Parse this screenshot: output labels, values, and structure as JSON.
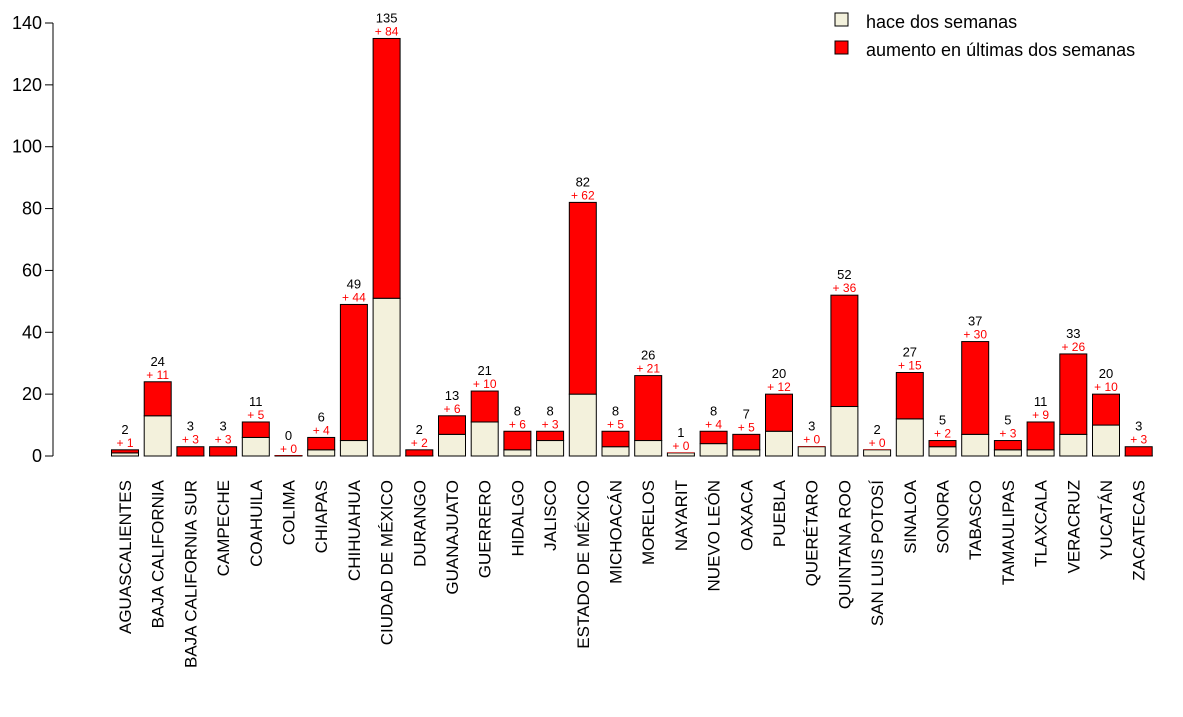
{
  "colors": {
    "base": "#f3f1dc",
    "increase": "#ff0000",
    "increase_text": "#ff0000",
    "axis": "#000000"
  },
  "legend": {
    "position": "top-right",
    "items": [
      {
        "label": "hace dos semanas",
        "color": "#f3f1dc"
      },
      {
        "label": "aumento en últimas dos semanas",
        "color": "#ff0000"
      }
    ]
  },
  "chart_data": {
    "type": "bar",
    "stacked": true,
    "categories": [
      "AGUASCALIENTES",
      "BAJA CALIFORNIA",
      "BAJA CALIFORNIA SUR",
      "CAMPECHE",
      "COAHUILA",
      "COLIMA",
      "CHIAPAS",
      "CHIHUAHUA",
      "CIUDAD DE MÉXICO",
      "DURANGO",
      "GUANAJUATO",
      "GUERRERO",
      "HIDALGO",
      "JALISCO",
      "ESTADO DE MÉXICO",
      "MICHOACÁN",
      "MORELOS",
      "NAYARIT",
      "NUEVO LEÓN",
      "OAXACA",
      "PUEBLA",
      "QUERÉTARO",
      "QUINTANA ROO",
      "SAN LUIS POTOSÍ",
      "SINALOA",
      "SONORA",
      "TABASCO",
      "TAMAULIPAS",
      "TLAXCALA",
      "VERACRUZ",
      "YUCATÁN",
      "ZACATECAS"
    ],
    "series": [
      {
        "name": "hace dos semanas",
        "values": [
          1,
          13,
          0,
          0,
          6,
          0,
          2,
          5,
          51,
          0,
          7,
          11,
          2,
          5,
          20,
          3,
          5,
          1,
          4,
          2,
          8,
          3,
          16,
          2,
          12,
          3,
          7,
          2,
          2,
          7,
          10,
          0
        ]
      },
      {
        "name": "aumento en últimas dos semanas",
        "values": [
          1,
          11,
          3,
          3,
          5,
          0,
          4,
          44,
          84,
          2,
          6,
          10,
          6,
          3,
          62,
          5,
          21,
          0,
          4,
          5,
          12,
          0,
          36,
          0,
          15,
          2,
          30,
          3,
          9,
          26,
          10,
          3
        ]
      }
    ],
    "totals": [
      2,
      24,
      3,
      3,
      11,
      0,
      6,
      49,
      135,
      2,
      13,
      21,
      8,
      8,
      82,
      8,
      26,
      1,
      8,
      7,
      20,
      3,
      52,
      2,
      27,
      5,
      37,
      5,
      11,
      33,
      20,
      3
    ],
    "total_labels": [
      "2",
      "24",
      "3",
      "3",
      "11",
      "0",
      "6",
      "49",
      "135",
      "2",
      "13",
      "21",
      "8",
      "8",
      "82",
      "8",
      "26",
      "1",
      "8",
      "7",
      "20",
      "3",
      "52",
      "2",
      "27",
      "5",
      "37",
      "5",
      "11",
      "33",
      "20",
      "3"
    ],
    "increase_labels": [
      "+ 1",
      "+ 11",
      "+ 3",
      "+ 3",
      "+ 5",
      "+ 0",
      "+ 4",
      "+ 44",
      "+ 84",
      "+ 2",
      "+ 6",
      "+ 10",
      "+ 6",
      "+ 3",
      "+ 62",
      "+ 5",
      "+ 21",
      "+ 0",
      "+ 4",
      "+ 5",
      "+ 12",
      "+ 0",
      "+ 36",
      "+ 0",
      "+ 15",
      "+ 2",
      "+ 30",
      "+ 3",
      "+ 9",
      "+ 26",
      "+ 10",
      "+ 3"
    ],
    "yticks": [
      "0",
      "20",
      "40",
      "60",
      "80",
      "100",
      "120",
      "140"
    ],
    "ylim": [
      0,
      140
    ],
    "xlabel": "",
    "ylabel": ""
  }
}
